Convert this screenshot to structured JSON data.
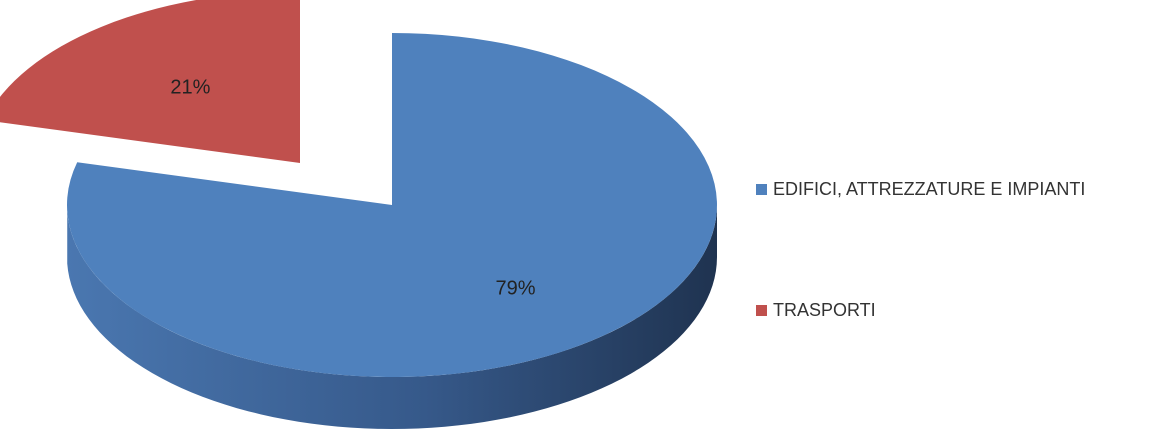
{
  "chart_data": {
    "type": "pie",
    "style": "3d-exploded",
    "categories": [
      "EDIFICI, ATTREZZATURE E IMPIANTI",
      "TRASPORTI"
    ],
    "values": [
      79,
      21
    ],
    "data_labels": [
      "79%",
      "21%"
    ],
    "colors": [
      "#4F81BD",
      "#C0504D"
    ],
    "side_colors": [
      "#3E6698",
      "#5A2020"
    ],
    "title": "",
    "legend_position": "right"
  }
}
